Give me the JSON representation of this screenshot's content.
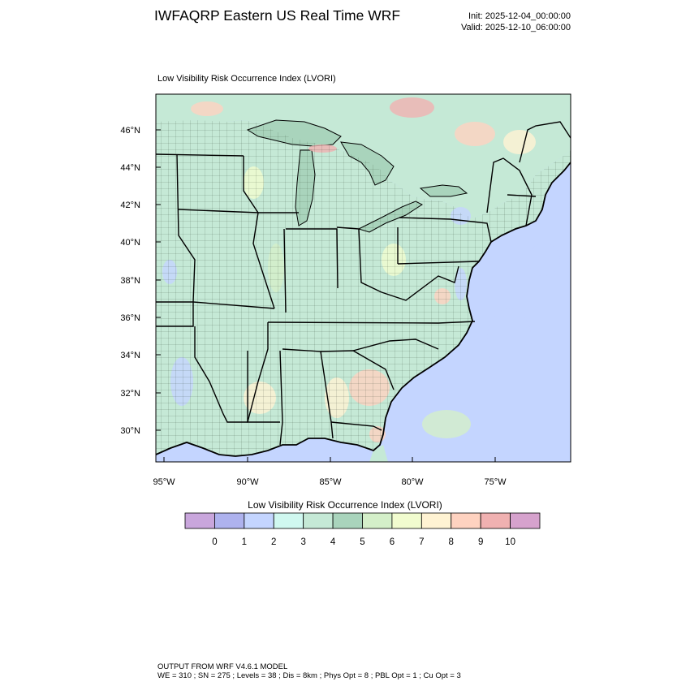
{
  "header": {
    "title": "IWFAQRP Eastern US Real Time WRF",
    "init": "Init: 2025-12-04_00:00:00",
    "valid": "Valid: 2025-12-10_06:00:00"
  },
  "map": {
    "field_title": "Low Visibility Risk Occurrence Index   (LVORI)",
    "lat_labels": [
      "46°N",
      "44°N",
      "42°N",
      "40°N",
      "38°N",
      "36°N",
      "34°N",
      "32°N",
      "30°N"
    ],
    "lon_labels": [
      "95°W",
      "90°W",
      "85°W",
      "80°W",
      "75°W"
    ],
    "land_color": "#c5e9d6",
    "ocean_color": "#c4d5ff",
    "boundary_color": "#000000"
  },
  "colorbar": {
    "title": "Low Visibility Risk Occurrence Index  (LVORI)",
    "colors": [
      "#c9a6dc",
      "#aeb2ee",
      "#c4d5ff",
      "#d0f8f0",
      "#c5e9d6",
      "#a9d4bc",
      "#d4efc9",
      "#f1fccf",
      "#fff3d3",
      "#fed2c0",
      "#f0b1b1",
      "#d6a2cd"
    ],
    "labels": [
      "0",
      "1",
      "2",
      "3",
      "4",
      "5",
      "6",
      "7",
      "8",
      "9",
      "10"
    ]
  },
  "footer": {
    "line1": "OUTPUT FROM WRF V4.6.1 MODEL",
    "line2": "WE = 310 ; SN = 275 ; Levels = 38 ; Dis = 8km ; Phys Opt = 8 ; PBL Opt = 1 ; Cu Opt = 3"
  }
}
